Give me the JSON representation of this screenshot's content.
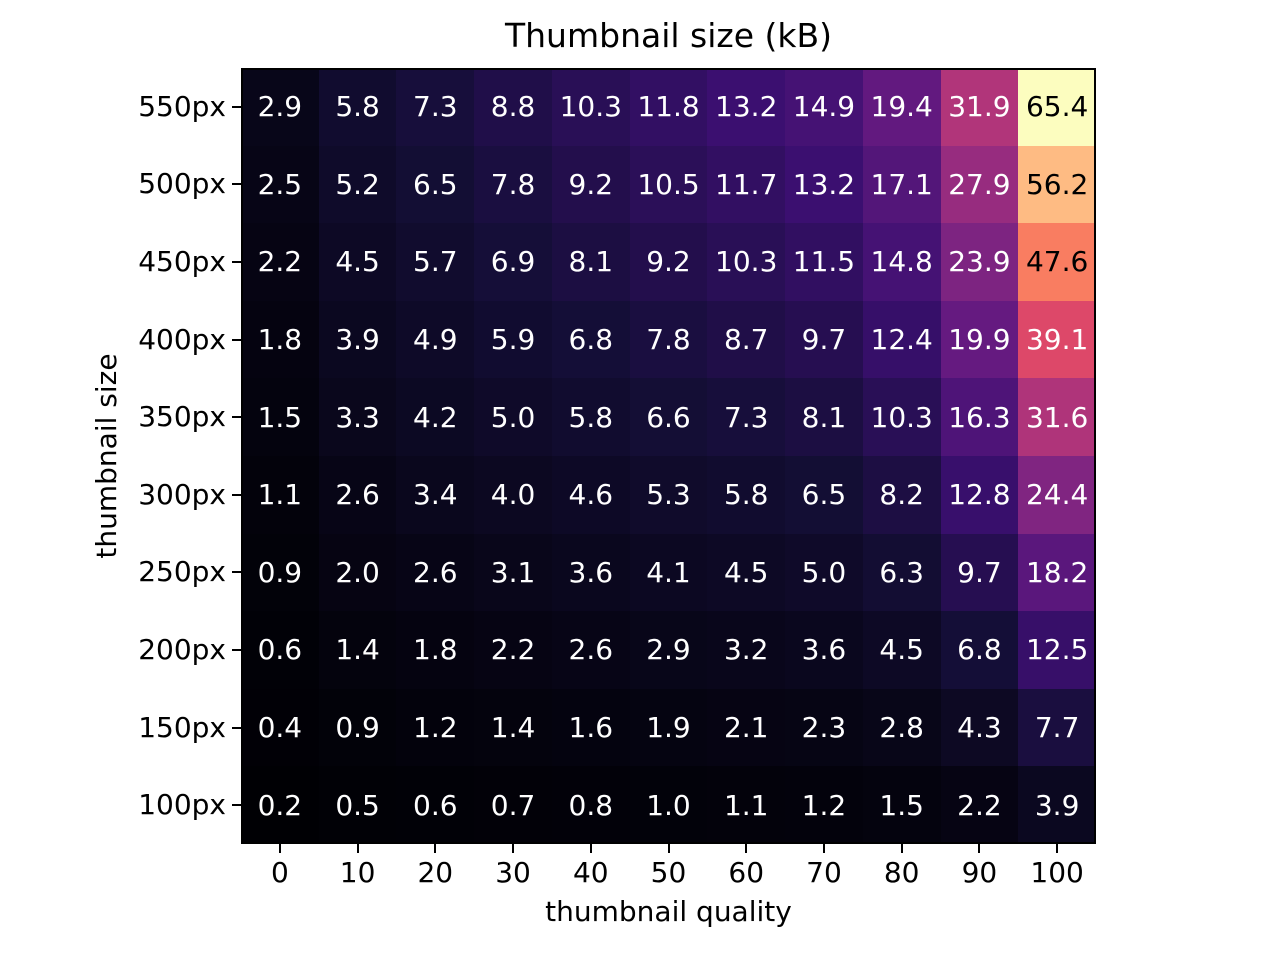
{
  "chart_data": {
    "type": "heatmap",
    "title": "Thumbnail size (kB)",
    "xlabel": "thumbnail quality",
    "ylabel": "thumbnail size",
    "x_ticks": [
      "0",
      "10",
      "20",
      "30",
      "40",
      "50",
      "60",
      "70",
      "80",
      "90",
      "100"
    ],
    "y_ticks": [
      "550px",
      "500px",
      "450px",
      "400px",
      "350px",
      "300px",
      "250px",
      "200px",
      "150px",
      "100px"
    ],
    "values": [
      [
        2.9,
        5.8,
        7.3,
        8.8,
        10.3,
        11.8,
        13.2,
        14.9,
        19.4,
        31.9,
        65.4
      ],
      [
        2.5,
        5.2,
        6.5,
        7.8,
        9.2,
        10.5,
        11.7,
        13.2,
        17.1,
        27.9,
        56.2
      ],
      [
        2.2,
        4.5,
        5.7,
        6.9,
        8.1,
        9.2,
        10.3,
        11.5,
        14.8,
        23.9,
        47.6
      ],
      [
        1.8,
        3.9,
        4.9,
        5.9,
        6.8,
        7.8,
        8.7,
        9.7,
        12.4,
        19.9,
        39.1
      ],
      [
        1.5,
        3.3,
        4.2,
        5.0,
        5.8,
        6.6,
        7.3,
        8.1,
        10.3,
        16.3,
        31.6
      ],
      [
        1.1,
        2.6,
        3.4,
        4.0,
        4.6,
        5.3,
        5.8,
        6.5,
        8.2,
        12.8,
        24.4
      ],
      [
        0.9,
        2.0,
        2.6,
        3.1,
        3.6,
        4.1,
        4.5,
        5.0,
        6.3,
        9.7,
        18.2
      ],
      [
        0.6,
        1.4,
        1.8,
        2.2,
        2.6,
        2.9,
        3.2,
        3.6,
        4.5,
        6.8,
        12.5
      ],
      [
        0.4,
        0.9,
        1.2,
        1.4,
        1.6,
        1.9,
        2.1,
        2.3,
        2.8,
        4.3,
        7.7
      ],
      [
        0.2,
        0.5,
        0.6,
        0.7,
        0.8,
        1.0,
        1.1,
        1.2,
        1.5,
        2.2,
        3.9
      ]
    ],
    "value_decimals": 1,
    "colormap": "magma",
    "colormap_anchors": [
      "#000004",
      "#140e36",
      "#3b0f70",
      "#641a80",
      "#8c2981",
      "#b73779",
      "#de4968",
      "#f7705c",
      "#fe9f6d",
      "#fecf92",
      "#fcfdbf"
    ],
    "color_scale": {
      "vmin": 0.2,
      "vmax": 65.4
    },
    "annotation_colors": {
      "on_dark": "#ffffff",
      "on_light": "#000000"
    },
    "grid": false,
    "legend": false
  }
}
